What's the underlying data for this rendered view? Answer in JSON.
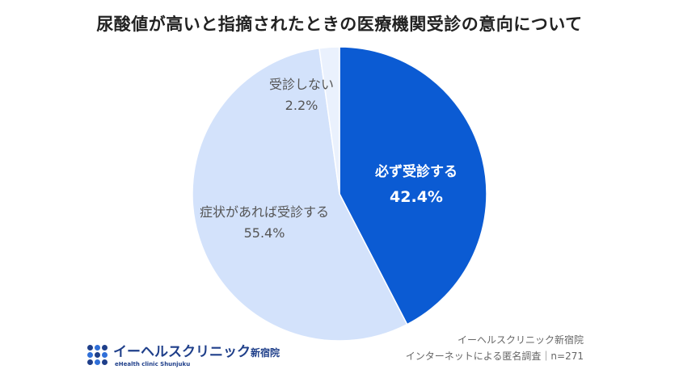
{
  "chart_data": {
    "type": "pie",
    "title": "尿酸値が高いと指摘されたときの医療機関受診の意向について",
    "slices": [
      {
        "label": "必ず受診する",
        "value": 42.4,
        "value_label": "42.4%",
        "color": "#0b5bd3",
        "text_color": "#ffffff"
      },
      {
        "label": "症状があれば受診する",
        "value": 55.4,
        "value_label": "55.4%",
        "color": "#d3e2fb",
        "text_color": "#555555"
      },
      {
        "label": "受診しない",
        "value": 2.2,
        "value_label": "2.2%",
        "color": "#eaf1fd",
        "text_color": "#555555"
      }
    ],
    "start_angle": "12 o'clock",
    "direction": "clockwise"
  },
  "logo": {
    "name_main": "イーヘルスクリニック",
    "name_sub": "新宿院",
    "name_en": "eHealth clinic Shunjuku",
    "dot_colors": [
      "#1f3f8a",
      "#2f6fd8",
      "#1f3f8a",
      "#2f6fd8",
      "#1f3f8a",
      "#2f6fd8",
      "#1f3f8a",
      "#2f6fd8",
      "#1f3f8a"
    ]
  },
  "source": {
    "line1": "イーヘルスクリニック新宿院",
    "line2": "インターネットによる匿名調査｜n=271"
  }
}
